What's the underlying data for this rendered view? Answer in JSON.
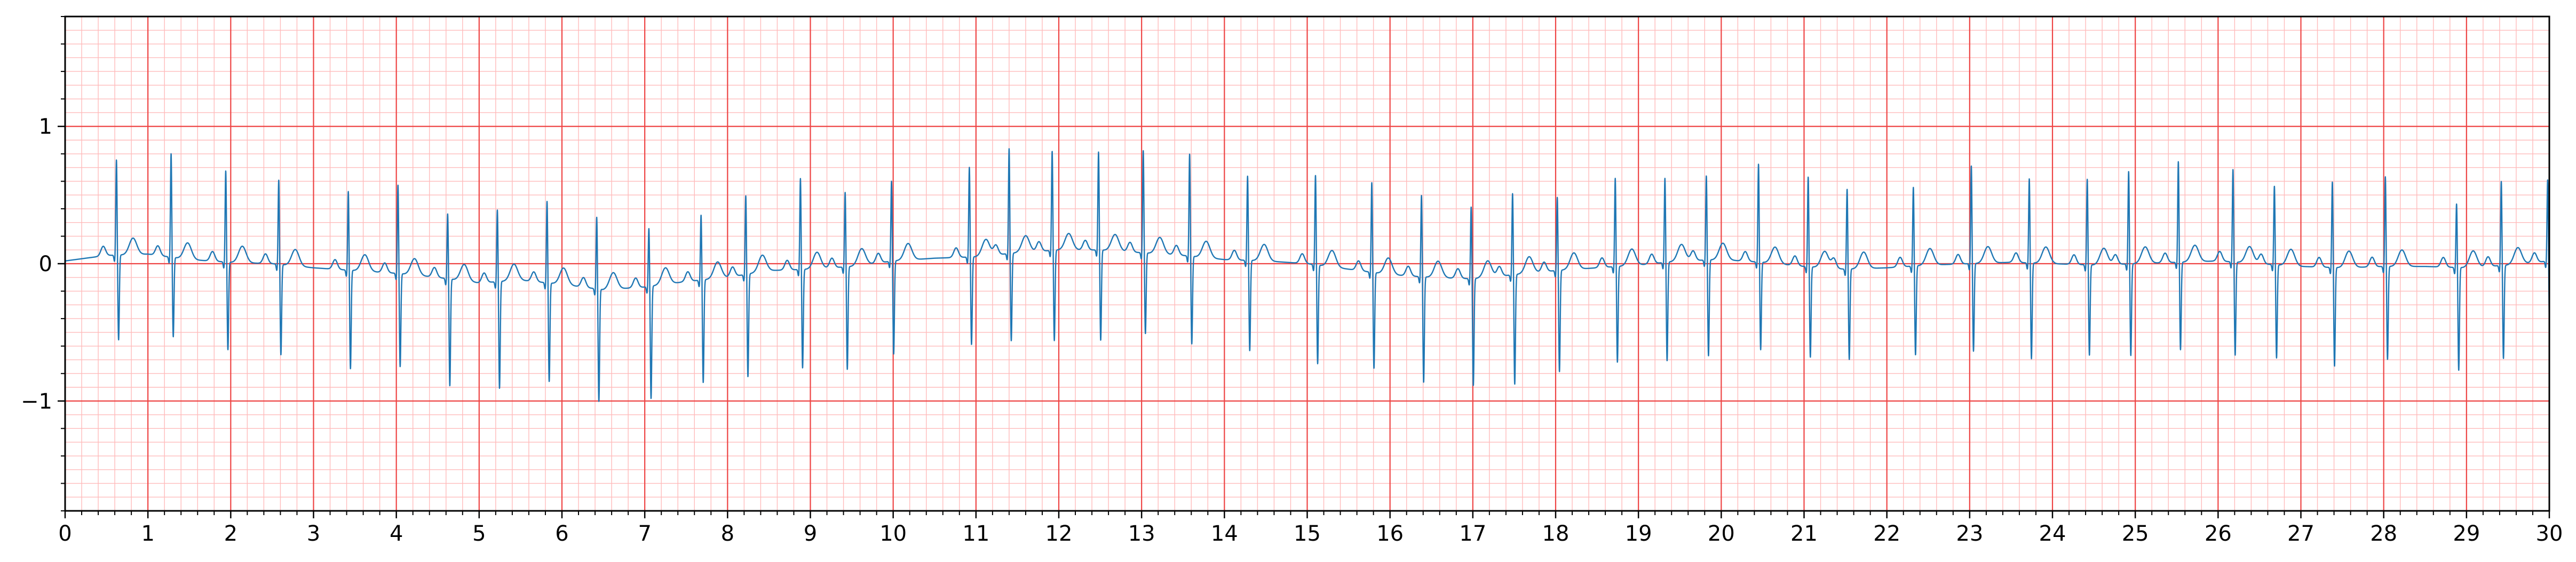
{
  "chart_data": {
    "type": "line",
    "title": "",
    "xlabel": "",
    "ylabel": "",
    "xlim": [
      0,
      30
    ],
    "ylim": [
      -1.8,
      1.8
    ],
    "grid": true,
    "legend": "none",
    "x_ticks": [
      0,
      1,
      2,
      3,
      4,
      5,
      6,
      7,
      8,
      9,
      10,
      11,
      12,
      13,
      14,
      15,
      16,
      17,
      18,
      19,
      20,
      21,
      22,
      23,
      24,
      25,
      26,
      27,
      28,
      29,
      30
    ],
    "x_tick_labels": [
      "0",
      "1",
      "2",
      "3",
      "4",
      "5",
      "6",
      "7",
      "8",
      "9",
      "10",
      "11",
      "12",
      "13",
      "14",
      "15",
      "16",
      "17",
      "18",
      "19",
      "20",
      "21",
      "22",
      "23",
      "24",
      "25",
      "26",
      "27",
      "28",
      "29",
      "30"
    ],
    "y_ticks": [
      -1,
      0,
      1
    ],
    "y_tick_labels": [
      "−1",
      "0",
      "1"
    ],
    "colors": {
      "major_grid": "#ee4444",
      "minor_grid": "#ffbbbb",
      "signal": "#1f77b4",
      "axes": "#000000"
    },
    "series": [
      {
        "baseline": [
          [
            0,
            0.02
          ],
          [
            0.5,
            0.06
          ],
          [
            1,
            0.07
          ],
          [
            1.5,
            0.03
          ],
          [
            2,
            0.01
          ],
          [
            2.5,
            0
          ],
          [
            3,
            -0.03
          ],
          [
            3.5,
            -0.05
          ],
          [
            4,
            -0.07
          ],
          [
            4.5,
            -0.1
          ],
          [
            5,
            -0.14
          ],
          [
            5.5,
            -0.12
          ],
          [
            6,
            -0.15
          ],
          [
            6.5,
            -0.19
          ],
          [
            7,
            -0.17
          ],
          [
            7.5,
            -0.13
          ],
          [
            8,
            -0.1
          ],
          [
            8.5,
            -0.05
          ],
          [
            9,
            -0.04
          ],
          [
            9.5,
            -0.02
          ],
          [
            10,
            0.02
          ],
          [
            10.5,
            0.04
          ],
          [
            11,
            0.05
          ],
          [
            11.5,
            0.08
          ],
          [
            12,
            0.1
          ],
          [
            12.5,
            0.1
          ],
          [
            13,
            0.08
          ],
          [
            13.5,
            0.06
          ],
          [
            14,
            0.03
          ],
          [
            14.5,
            0.02
          ],
          [
            15,
            0
          ],
          [
            15.5,
            -0.04
          ],
          [
            16,
            -0.08
          ],
          [
            16.5,
            -0.1
          ],
          [
            17,
            -0.11
          ],
          [
            17.5,
            -0.08
          ],
          [
            18,
            -0.05
          ],
          [
            18.5,
            -0.03
          ],
          [
            19,
            -0.01
          ],
          [
            19.5,
            0.02
          ],
          [
            20,
            0.03
          ],
          [
            20.5,
            0.01
          ],
          [
            21,
            -0.02
          ],
          [
            21.5,
            -0.04
          ],
          [
            22,
            -0.03
          ],
          [
            22.5,
            -0.01
          ],
          [
            23,
            0
          ],
          [
            23.5,
            0.01
          ],
          [
            24,
            0
          ],
          [
            24.5,
            -0.01
          ],
          [
            25,
            0
          ],
          [
            25.5,
            0.01
          ],
          [
            26,
            0.02
          ],
          [
            26.5,
            0
          ],
          [
            27,
            -0.02
          ],
          [
            27.5,
            -0.03
          ],
          [
            28,
            -0.02
          ],
          [
            28.5,
            -0.02
          ],
          [
            29,
            -0.03
          ],
          [
            29.5,
            -0.01
          ],
          [
            30,
            0.02
          ]
        ],
        "beats": [
          [
            0.62,
            0.7,
            -0.62
          ],
          [
            1.28,
            0.76,
            -0.58
          ],
          [
            1.94,
            0.67,
            -0.64
          ],
          [
            2.58,
            0.62,
            -0.66
          ],
          [
            3.42,
            0.58,
            -0.72
          ],
          [
            4.02,
            0.65,
            -0.68
          ],
          [
            4.62,
            0.48,
            -0.78
          ],
          [
            5.22,
            0.53,
            -0.78
          ],
          [
            5.82,
            0.6,
            -0.72
          ],
          [
            6.42,
            0.53,
            -0.82
          ],
          [
            7.05,
            0.43,
            -0.82
          ],
          [
            7.68,
            0.48,
            -0.75
          ],
          [
            8.22,
            0.58,
            -0.75
          ],
          [
            8.88,
            0.67,
            -0.72
          ],
          [
            9.42,
            0.55,
            -0.75
          ],
          [
            9.98,
            0.59,
            -0.68
          ],
          [
            10.92,
            0.66,
            -0.64
          ],
          [
            11.4,
            0.77,
            -0.64
          ],
          [
            11.92,
            0.73,
            -0.66
          ],
          [
            12.48,
            0.72,
            -0.66
          ],
          [
            13.02,
            0.75,
            -0.59
          ],
          [
            13.58,
            0.75,
            -0.64
          ],
          [
            14.28,
            0.62,
            -0.66
          ],
          [
            15.1,
            0.66,
            -0.72
          ],
          [
            15.78,
            0.66,
            -0.7
          ],
          [
            16.38,
            0.6,
            -0.77
          ],
          [
            16.98,
            0.53,
            -0.78
          ],
          [
            17.48,
            0.6,
            -0.8
          ],
          [
            18.02,
            0.54,
            -0.74
          ],
          [
            18.72,
            0.65,
            -0.7
          ],
          [
            19.32,
            0.62,
            -0.72
          ],
          [
            19.82,
            0.62,
            -0.7
          ],
          [
            20.45,
            0.72,
            -0.64
          ],
          [
            21.05,
            0.66,
            -0.66
          ],
          [
            21.52,
            0.59,
            -0.66
          ],
          [
            22.32,
            0.58,
            -0.65
          ],
          [
            23.02,
            0.72,
            -0.64
          ],
          [
            23.72,
            0.62,
            -0.7
          ],
          [
            24.42,
            0.63,
            -0.66
          ],
          [
            24.92,
            0.68,
            -0.67
          ],
          [
            25.52,
            0.74,
            -0.64
          ],
          [
            26.18,
            0.68,
            -0.68
          ],
          [
            26.68,
            0.58,
            -0.68
          ],
          [
            27.38,
            0.63,
            -0.72
          ],
          [
            28.02,
            0.66,
            -0.68
          ],
          [
            28.88,
            0.47,
            -0.75
          ],
          [
            29.42,
            0.62,
            -0.68
          ],
          [
            29.98,
            0.6,
            -0.65
          ]
        ]
      }
    ]
  }
}
